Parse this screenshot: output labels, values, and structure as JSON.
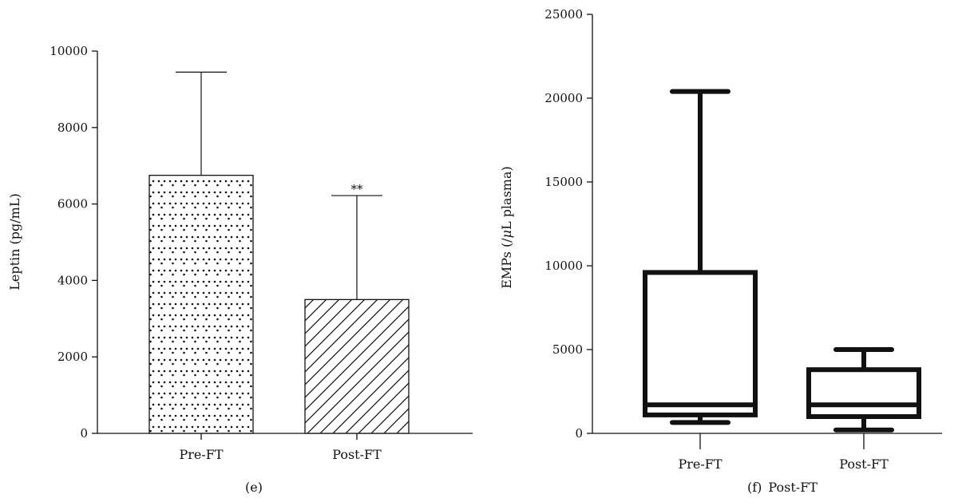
{
  "chart_data": [
    {
      "type": "bar",
      "panel_label": "(e)",
      "categories": [
        "Pre-FT",
        "Post-FT"
      ],
      "values": [
        6750,
        3500
      ],
      "error_upper": [
        9450,
        6220
      ],
      "significance": [
        "",
        "**"
      ],
      "patterns": [
        "dotted",
        "hatched"
      ],
      "title": "",
      "xlabel": "",
      "ylabel": "Leptin (pg/mL)",
      "ylim": [
        0,
        10000
      ],
      "yticks": [
        0,
        2000,
        4000,
        6000,
        8000,
        10000
      ],
      "grid": false,
      "legend": "none"
    },
    {
      "type": "box",
      "panel_label": "(f)",
      "panel_note": "Post-FT",
      "categories": [
        "Pre-FT",
        "Post-FT"
      ],
      "boxes": [
        {
          "whisker_low": 650,
          "q1": 1100,
          "median": 1700,
          "q3": 9600,
          "whisker_high": 20400
        },
        {
          "whisker_low": 200,
          "q1": 1000,
          "median": 1700,
          "q3": 3800,
          "whisker_high": 5000
        }
      ],
      "title": "",
      "xlabel": "",
      "ylabel_main": "EMPs (/",
      "ylabel_mu": "μ",
      "ylabel_rest": "L plasma)",
      "ylim": [
        0,
        25000
      ],
      "yticks": [
        0,
        5000,
        10000,
        15000,
        20000,
        25000
      ],
      "grid": false,
      "legend": "none"
    }
  ]
}
